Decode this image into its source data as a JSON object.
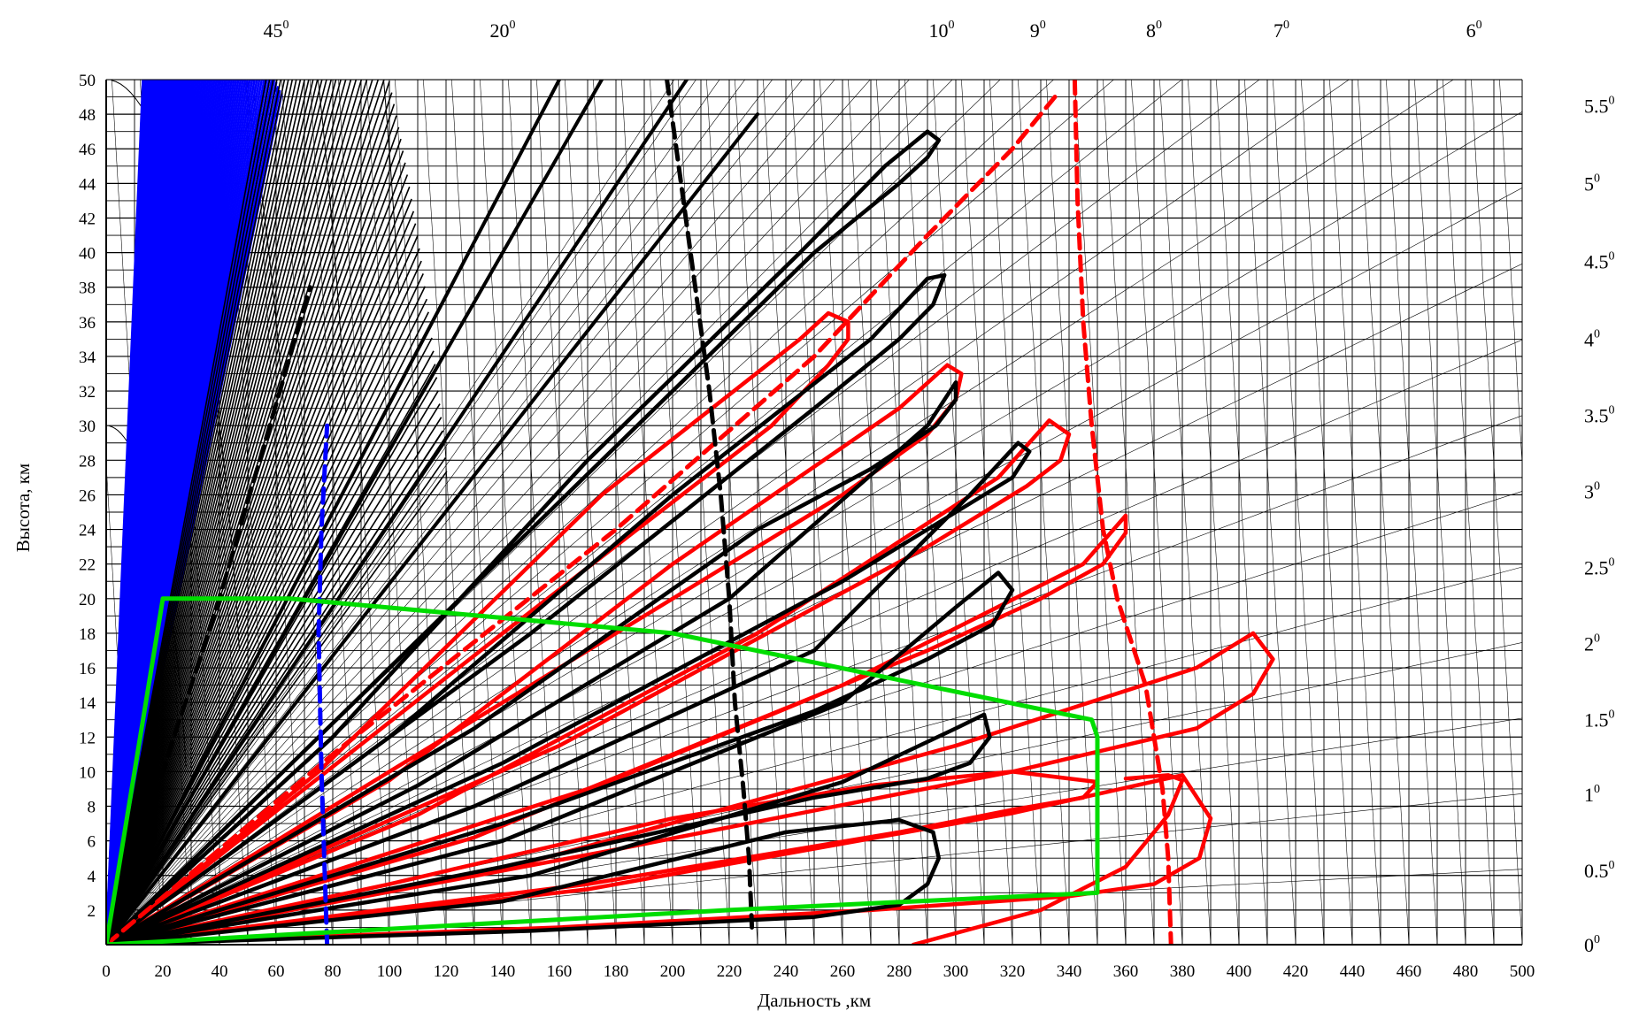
{
  "chart_data": {
    "type": "line",
    "title": "",
    "xlabel": "Дальность ,км",
    "ylabel": "Высота, км",
    "xlim": [
      0,
      500
    ],
    "ylim": [
      0,
      50
    ],
    "x_ticks": [
      "0",
      "20",
      "40",
      "60",
      "80",
      "100",
      "120",
      "140",
      "160",
      "180",
      "200",
      "220",
      "240",
      "260",
      "280",
      "300",
      "320",
      "340",
      "360",
      "380",
      "400",
      "420",
      "440",
      "460",
      "480",
      "500"
    ],
    "y_ticks": [
      "2",
      "4",
      "6",
      "8",
      "10",
      "12",
      "14",
      "16",
      "18",
      "20",
      "22",
      "24",
      "26",
      "28",
      "30",
      "32",
      "34",
      "36",
      "38",
      "40",
      "42",
      "44",
      "46",
      "48",
      "50"
    ],
    "grid": true,
    "elevation_labels_top": [
      {
        "label": "45",
        "deg": "0",
        "x": 60
      },
      {
        "label": "20",
        "deg": "0",
        "x": 140
      },
      {
        "label": "10",
        "deg": "0",
        "x": 295
      },
      {
        "label": "9",
        "deg": "0",
        "x": 329
      },
      {
        "label": "8",
        "deg": "0",
        "x": 370
      },
      {
        "label": "7",
        "deg": "0",
        "x": 415
      },
      {
        "label": "6",
        "deg": "0",
        "x": 483
      }
    ],
    "elevation_labels_right": [
      {
        "label": "5.5",
        "deg": "0",
        "y": 48.5
      },
      {
        "label": "5",
        "deg": "0",
        "y": 44
      },
      {
        "label": "4.5",
        "deg": "0",
        "y": 39.5
      },
      {
        "label": "4",
        "deg": "0",
        "y": 35
      },
      {
        "label": "3.5",
        "deg": "0",
        "y": 30.6
      },
      {
        "label": "3",
        "deg": "0",
        "y": 26.2
      },
      {
        "label": "2.5",
        "deg": "0",
        "y": 21.8
      },
      {
        "label": "2",
        "deg": "0",
        "y": 17.4
      },
      {
        "label": "1.5",
        "deg": "0",
        "y": 13
      },
      {
        "label": "1",
        "deg": "0",
        "y": 8.7
      },
      {
        "label": "0.5",
        "deg": "0",
        "y": 4.3
      },
      {
        "label": "0",
        "deg": "0",
        "y": 0
      }
    ],
    "series": [
      {
        "kind": "lobe",
        "color": "#ff0000",
        "x": [
          0,
          75,
          175,
          245,
          255,
          262,
          262,
          255,
          235,
          140,
          0
        ],
        "y": [
          0,
          10,
          26,
          35,
          36.5,
          36,
          35,
          33.5,
          30,
          18,
          0
        ]
      },
      {
        "kind": "lobe",
        "color": "#ff0000",
        "x": [
          0,
          100,
          200,
          280,
          297,
          302,
          300,
          290,
          260,
          140,
          0
        ],
        "y": [
          0,
          9.5,
          22,
          31,
          33.5,
          33,
          31.5,
          29.5,
          26,
          14,
          0
        ]
      },
      {
        "kind": "lobe",
        "color": "#ff0000",
        "x": [
          0,
          110,
          230,
          315,
          333,
          340,
          337,
          325,
          290,
          160,
          0
        ],
        "y": [
          0,
          7.5,
          18,
          27,
          30.3,
          29.5,
          28,
          26.5,
          23,
          11.5,
          0
        ]
      },
      {
        "kind": "lobe",
        "color": "#ff0000",
        "x": [
          0,
          130,
          260,
          345,
          360,
          360,
          352,
          330,
          290,
          170,
          0
        ],
        "y": [
          0,
          6.2,
          15,
          22,
          24.8,
          23.8,
          22,
          20,
          17,
          9,
          0
        ]
      },
      {
        "kind": "lobe",
        "color": "#ff0000",
        "x": [
          0,
          150,
          300,
          385,
          405,
          412,
          405,
          385,
          320,
          180,
          0
        ],
        "y": [
          0,
          4.8,
          11.5,
          16,
          18,
          16.5,
          14.5,
          12.5,
          10,
          5.5,
          0
        ]
      },
      {
        "kind": "lobe",
        "color": "#ff0000",
        "x": [
          0,
          170,
          320,
          380,
          390,
          386,
          370,
          340,
          270,
          160,
          0
        ],
        "y": [
          0,
          3.2,
          7.6,
          9.8,
          7.3,
          5,
          3.5,
          2.8,
          2,
          1,
          0
        ]
      },
      {
        "kind": "lobe",
        "color": "#ff0000",
        "x": [
          0,
          100,
          200,
          270,
          320,
          350,
          345,
          320,
          280,
          170,
          0
        ],
        "y": [
          0,
          3.5,
          7.3,
          9.2,
          10,
          9.4,
          8.5,
          7.8,
          6.5,
          3.5,
          0
        ]
      },
      {
        "kind": "arc",
        "color": "#ff0000",
        "x": [
          285,
          330,
          360,
          375,
          380,
          375,
          360
        ],
        "y": [
          0,
          2,
          4.5,
          7.5,
          9.5,
          9.8,
          9.6
        ]
      },
      {
        "kind": "lobe",
        "color": "#000000",
        "x": [
          0,
          80,
          170,
          245,
          275,
          290,
          294,
          290,
          280,
          250,
          150,
          0
        ],
        "y": [
          0,
          12,
          28,
          40,
          45,
          47,
          46.5,
          45.5,
          44,
          40,
          24,
          0
        ]
      },
      {
        "kind": "lobe",
        "color": "#000000",
        "x": [
          0,
          100,
          200,
          270,
          290,
          296,
          292,
          280,
          250,
          150,
          0
        ],
        "y": [
          0,
          12,
          26,
          35,
          38.5,
          38.7,
          37,
          35,
          31,
          18,
          0
        ]
      },
      {
        "kind": "lobe",
        "color": "#000000",
        "x": [
          0,
          110,
          220,
          290,
          300,
          300,
          293,
          270,
          230,
          130,
          0
        ],
        "y": [
          0,
          9.2,
          20,
          30,
          32.5,
          31.5,
          30,
          27.5,
          24,
          12.5,
          0
        ]
      },
      {
        "kind": "lobe",
        "color": "#000000",
        "x": [
          0,
          130,
          250,
          305,
          322,
          326,
          320,
          300,
          260,
          140,
          0
        ],
        "y": [
          0,
          8,
          17,
          26,
          29,
          28.5,
          27,
          25,
          21,
          10.5,
          0
        ]
      },
      {
        "kind": "lobe",
        "color": "#000000",
        "x": [
          0,
          140,
          260,
          300,
          315,
          320,
          313,
          290,
          250,
          140,
          0
        ],
        "y": [
          0,
          6,
          14,
          19.5,
          21.5,
          20.5,
          18.5,
          16.5,
          13.5,
          7,
          0
        ]
      },
      {
        "kind": "lobe",
        "color": "#000000",
        "x": [
          0,
          150,
          260,
          300,
          310,
          312,
          305,
          290,
          250,
          140,
          0
        ],
        "y": [
          0,
          4,
          9.4,
          12.5,
          13.3,
          12,
          10.5,
          9.6,
          8.5,
          4.5,
          0
        ]
      },
      {
        "kind": "lobe",
        "color": "#000000",
        "x": [
          0,
          140,
          240,
          280,
          292,
          294,
          290,
          280,
          250,
          150,
          0
        ],
        "y": [
          0,
          2.5,
          6.5,
          7.2,
          6.5,
          5,
          3.5,
          2.3,
          1.6,
          0.8,
          0
        ]
      },
      {
        "kind": "ray",
        "color": "#000000",
        "x": [
          0,
          160
        ],
        "y": [
          0,
          50
        ]
      },
      {
        "kind": "ray",
        "color": "#000000",
        "x": [
          0,
          175
        ],
        "y": [
          0,
          50
        ]
      },
      {
        "kind": "ray",
        "color": "#000000",
        "x": [
          0,
          205
        ],
        "y": [
          0,
          50
        ]
      },
      {
        "kind": "ray",
        "color": "#000000",
        "x": [
          0,
          230
        ],
        "y": [
          0,
          48
        ]
      },
      {
        "kind": "dashed",
        "color": "#ff0000",
        "x": [
          0,
          80,
          180,
          250,
          290,
          320,
          335
        ],
        "y": [
          0,
          11,
          24,
          34,
          41,
          46,
          49
        ]
      },
      {
        "kind": "dashed",
        "color": "#ff0000",
        "x": [
          342,
          343,
          345,
          348,
          352,
          357,
          363,
          367,
          370,
          373,
          375,
          376
        ],
        "y": [
          50,
          43,
          36,
          30,
          24,
          20,
          17,
          15,
          12,
          9,
          5,
          0
        ]
      },
      {
        "kind": "dashed",
        "color": "#000000",
        "x": [
          198,
          203,
          208,
          213,
          217,
          220,
          222,
          225,
          227,
          228
        ],
        "y": [
          50,
          44,
          38,
          32,
          26,
          20,
          14,
          9,
          5,
          1
        ]
      },
      {
        "kind": "dashed",
        "color": "#000000",
        "x": [
          0,
          40,
          72
        ],
        "y": [
          0,
          20,
          38
        ]
      },
      {
        "kind": "dashed",
        "color": "#0000ff",
        "x": [
          78,
          77,
          76,
          75,
          76,
          77,
          78
        ],
        "y": [
          0,
          5,
          10,
          18,
          24,
          27,
          30
        ]
      },
      {
        "kind": "zone",
        "color": "#00dd00",
        "x": [
          0,
          18,
          20,
          65,
          200,
          348,
          350,
          350,
          220,
          0
        ],
        "y": [
          0,
          18,
          20,
          20,
          18,
          13,
          12,
          3,
          2,
          0
        ]
      }
    ],
    "fan_color": "#0000ff",
    "fan_dense_color": "#000000"
  }
}
